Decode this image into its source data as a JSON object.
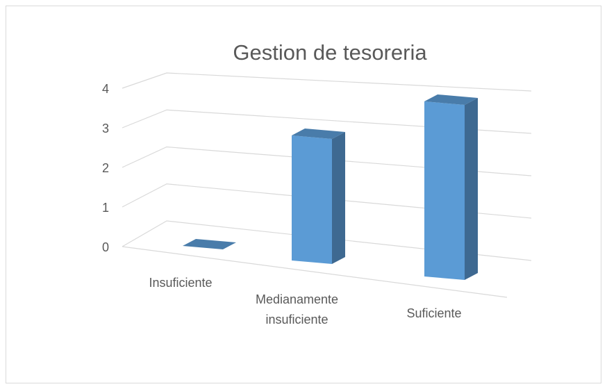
{
  "chart_data": {
    "type": "bar3d",
    "title": "Gestion de tesoreria",
    "categories": [
      "Insuficiente",
      "Medianamente insuficiente",
      "Suficiente"
    ],
    "values": [
      0,
      3,
      4
    ],
    "color": "#5b9bd5",
    "ylim": [
      0,
      4
    ],
    "yticks": [
      0,
      1,
      2,
      3,
      4
    ],
    "grid": true
  }
}
